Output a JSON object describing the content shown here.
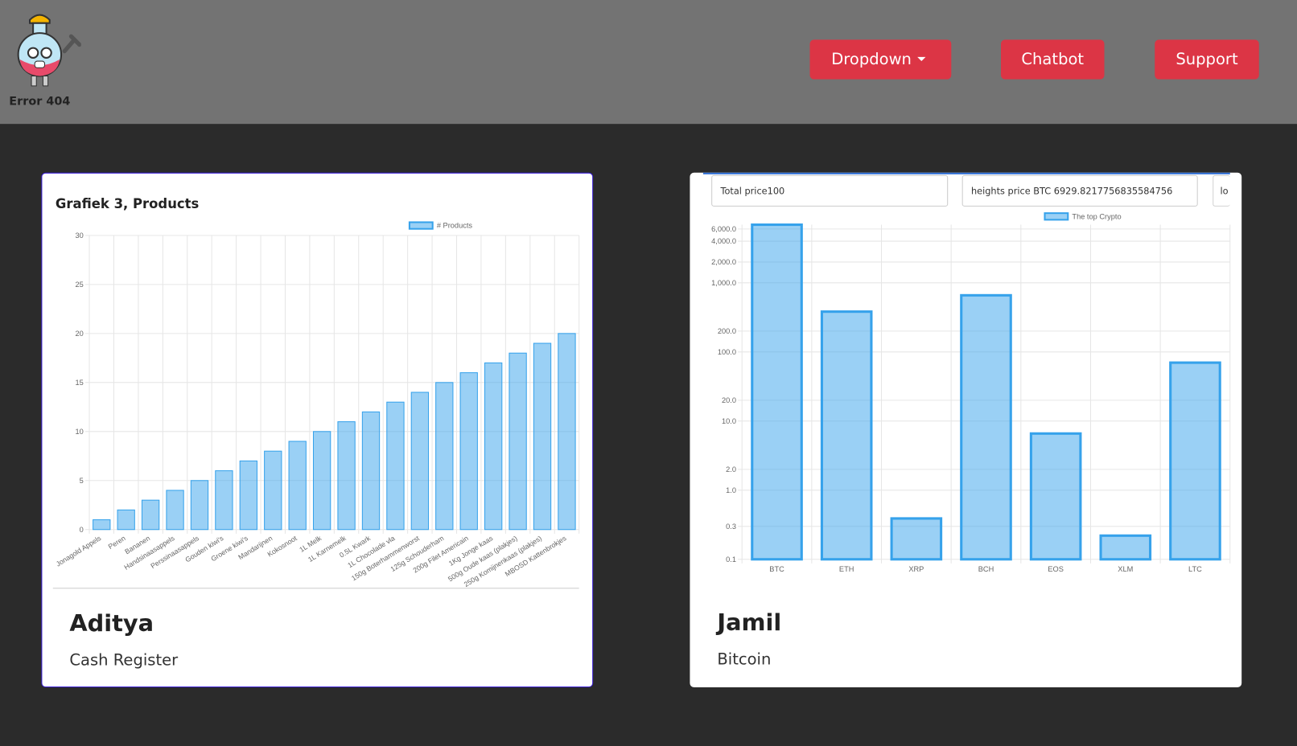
{
  "header": {
    "logo": "Error 404",
    "nav": [
      "Dropdown",
      "Chatbot",
      "Support"
    ]
  },
  "cards": [
    {
      "title": "Aditya",
      "subtitle": "Cash Register"
    },
    {
      "title": "Jamil",
      "subtitle": "Bitcoin",
      "inputs": [
        "Total price100",
        "heights price BTC 6929.8217756835584756",
        "lo"
      ]
    }
  ],
  "chart_data": [
    {
      "type": "bar",
      "title": "Grafiek 3, Products",
      "categories": [
        "Jonagold Appels",
        "Peren",
        "Bananen",
        "Handsinaasappels",
        "Perssinaasappels",
        "Gouden kiwi's",
        "Groene kiwi's",
        "Mandarijnen",
        "Kokosnoot",
        "1L Melk",
        "1L Karnemelk",
        "0.5L Kwark",
        "1L Chocolade vla",
        "150g Boterhammenworst",
        "125g Schouderham",
        "200g Filet Americain",
        "1Kg Jonge kaas",
        "500g Oude kaas (plakjes)",
        "250g Komijnenkaas (plakjes)",
        "MBOSD Kattenbrokjes"
      ],
      "series": [
        {
          "name": "# Products",
          "color": "#36a2eb",
          "values": [
            1,
            2,
            3,
            4,
            5,
            6,
            7,
            8,
            9,
            10,
            11,
            12,
            13,
            14,
            15,
            16,
            17,
            18,
            19,
            20
          ]
        }
      ],
      "ylim": [
        0,
        30
      ],
      "yticks": [
        0,
        5,
        10,
        15,
        20,
        25,
        30
      ],
      "grid": true,
      "log_scale": false
    },
    {
      "type": "bar",
      "categories": [
        "BTC",
        "ETH",
        "XRP",
        "BCH",
        "EOS",
        "XLM",
        "LTC"
      ],
      "series": [
        {
          "name": "The top Crypto",
          "color": "#36a2eb",
          "values": [
            6929.82,
            383,
            0.39,
            660,
            6.6,
            0.22,
            70
          ]
        }
      ],
      "ylim": [
        0.1,
        6929.82
      ],
      "log_scale": true,
      "grid": true,
      "yticks": [
        {
          "value": 6000,
          "label": "6,000.0"
        },
        {
          "value": 4000,
          "label": "4,000.0"
        },
        {
          "value": 2000,
          "label": "2,000.0"
        },
        {
          "value": 1000,
          "label": "1,000.0"
        },
        {
          "value": 200,
          "label": "200.0"
        },
        {
          "value": 100,
          "label": "100.0"
        },
        {
          "value": 20,
          "label": "20.0"
        },
        {
          "value": 10,
          "label": "10.0"
        },
        {
          "value": 2,
          "label": "2.0"
        },
        {
          "value": 1,
          "label": "1.0"
        },
        0.3,
        0.1
      ]
    }
  ]
}
